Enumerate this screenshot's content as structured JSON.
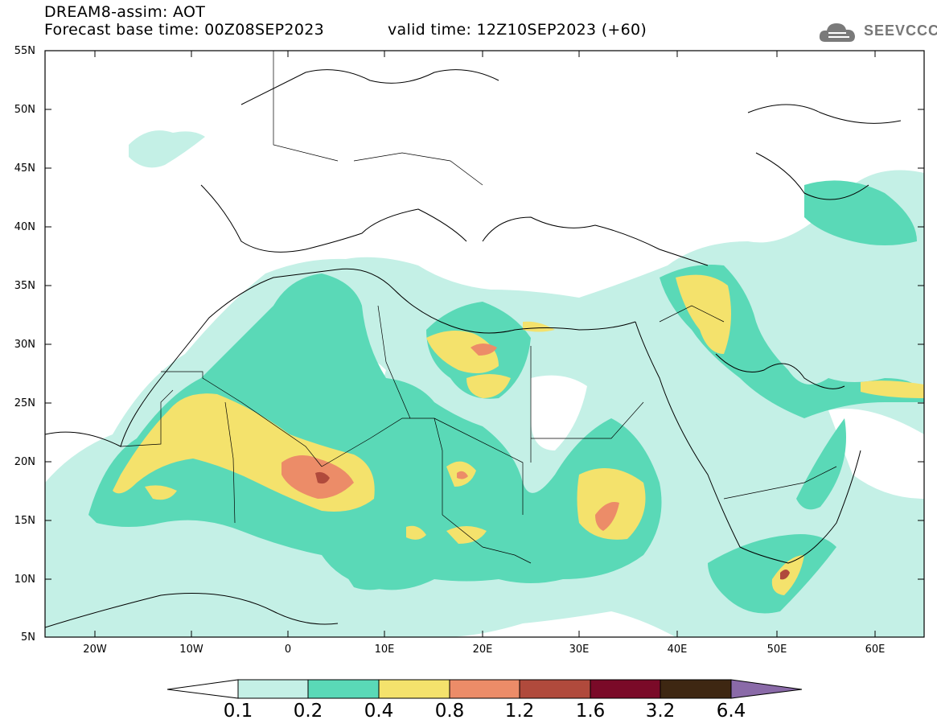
{
  "header": {
    "title_line1": "DREAM8-assim: AOT",
    "title_line2_left": "Forecast base time: 00Z08SEP2023",
    "title_line2_right": "valid time: 12Z10SEP2023 (+60)",
    "logo_text": "SEEVCCC"
  },
  "map": {
    "lat_labels": [
      "55N",
      "50N",
      "45N",
      "40N",
      "35N",
      "30N",
      "25N",
      "20N",
      "15N",
      "10N",
      "5N"
    ],
    "lon_labels": [
      "20W",
      "10W",
      "0",
      "10E",
      "20E",
      "30E",
      "40E",
      "50E",
      "60E"
    ],
    "background": "#ffffff"
  },
  "colorbar": {
    "labels": [
      "0.1",
      "0.2",
      "0.4",
      "0.8",
      "1.2",
      "1.6",
      "3.2",
      "6.4"
    ],
    "colors": [
      "#ffffff",
      "#c4f0e6",
      "#5ad9b7",
      "#f4e26c",
      "#ec8c68",
      "#b04a3c",
      "#7a0a28",
      "#3e2712",
      "#8a6aa8"
    ]
  }
}
